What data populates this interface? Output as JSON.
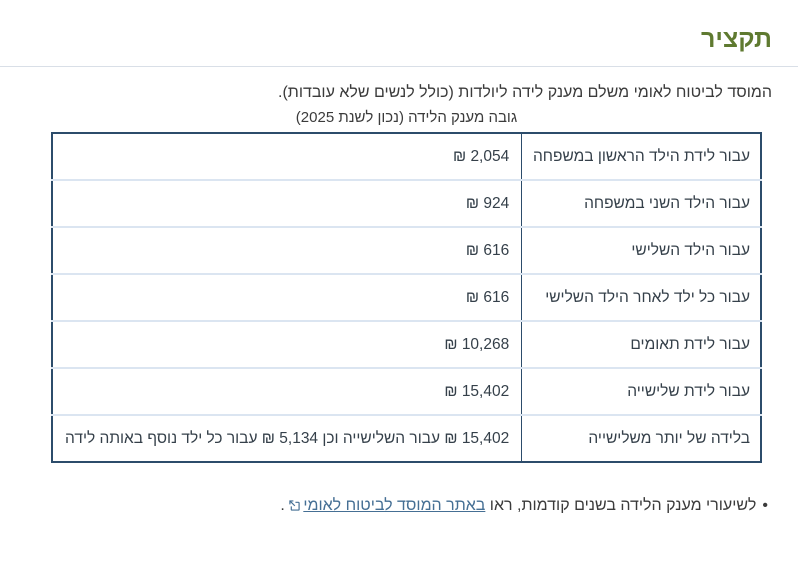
{
  "page": {
    "title": "תקציר",
    "intro": "המוסד לביטוח לאומי משלם מענק לידה ליולדות (כולל לנשים שלא עובדות).",
    "table_caption": "גובה מענק הלידה (נכון לשנת 2025)"
  },
  "table": {
    "rows": [
      {
        "label": "עבור לידת הילד הראשון במשפחה",
        "value": "2,054 ₪"
      },
      {
        "label": "עבור הילד השני במשפחה",
        "value": "924 ₪"
      },
      {
        "label": "עבור הילד השלישי",
        "value": "616 ₪"
      },
      {
        "label": "עבור כל ילד לאחר הילד השלישי",
        "value": "616 ₪"
      },
      {
        "label": "עבור לידת תאומים",
        "value": "10,268 ₪"
      },
      {
        "label": "עבור לידת שלישייה",
        "value": "15,402 ₪"
      },
      {
        "label": "בלידה של יותר משלישייה",
        "value": "15,402 ₪ עבור השלישייה וכן 5,134 ₪ עבור כל ילד נוסף באותה לידה"
      }
    ]
  },
  "footnote": {
    "bullet": "•",
    "prefix": "לשיעורי מענק הלידה בשנים קודמות, ראו ",
    "link_label": "באתר המוסד לביטוח לאומי",
    "suffix": " ."
  },
  "colors": {
    "title_green": "#5f7a30",
    "table_border": "#2c4c6b",
    "row_divider": "#dbe5f1",
    "link_blue": "#456f94",
    "text": "#3b3b3b"
  }
}
